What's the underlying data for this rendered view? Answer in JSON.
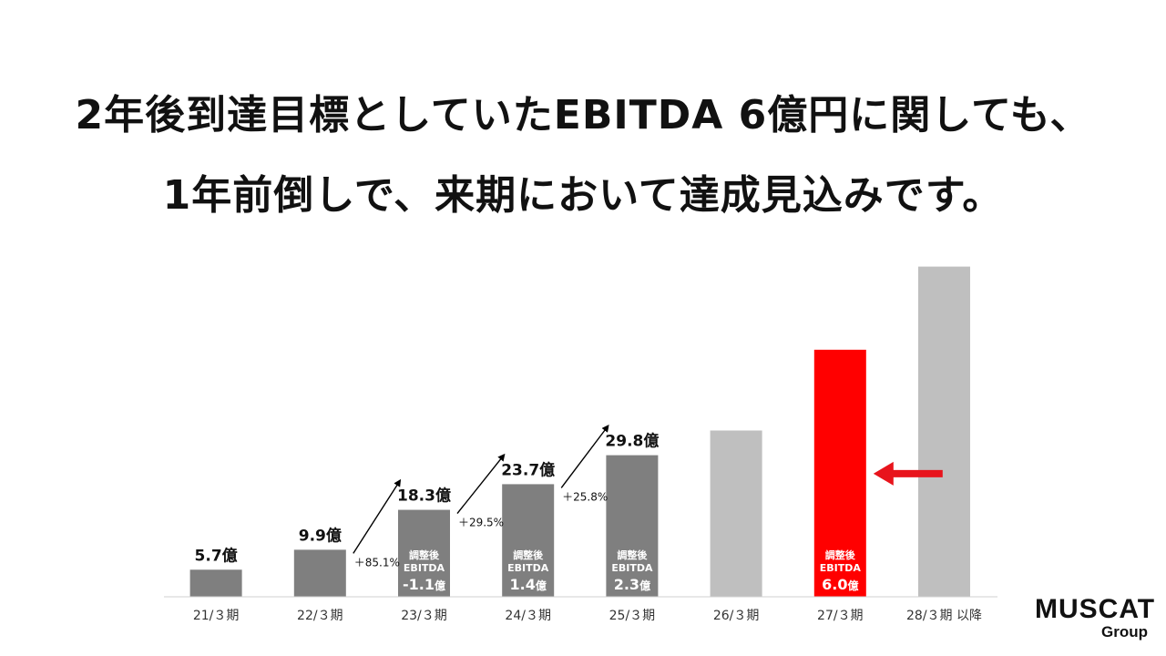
{
  "headline": {
    "line1": "2年後到達目標としていたEBITDA 6億円に関しても、",
    "line2": "1年前倒しで、来期において達成見込みです。"
  },
  "chart_data": {
    "type": "bar",
    "categories": [
      "21/３期",
      "22/３期",
      "23/３期",
      "24/３期",
      "25/３期",
      "26/３期",
      "27/３期",
      "28/３期 以降"
    ],
    "series": [
      {
        "values": [
          5.7,
          9.9,
          18.3,
          23.7,
          29.8,
          35.0,
          52.0,
          69.5
        ]
      }
    ],
    "value_labels": [
      "5.7億",
      "9.9億",
      "18.3億",
      "23.7億",
      "29.8億",
      "",
      "",
      ""
    ],
    "bar_colors": [
      "#7f7f7f",
      "#7f7f7f",
      "#7f7f7f",
      "#7f7f7f",
      "#7f7f7f",
      "#bfbfbf",
      "#ff0000",
      "#bfbfbf"
    ],
    "ebitda": [
      null,
      null,
      {
        "label1": "調整後",
        "label2": "EBITDA",
        "value": "-1.1",
        "unit": "億"
      },
      {
        "label1": "調整後",
        "label2": "EBITDA",
        "value": "1.4",
        "unit": "億"
      },
      {
        "label1": "調整後",
        "label2": "EBITDA",
        "value": "2.3",
        "unit": "億"
      },
      null,
      {
        "label1": "調整後",
        "label2": "EBITDA",
        "value": "6.0",
        "unit": "億"
      },
      null
    ],
    "growth": [
      {
        "from": 1,
        "to": 2,
        "label": "＋85.1%"
      },
      {
        "from": 2,
        "to": 3,
        "label": "＋29.5%"
      },
      {
        "from": 3,
        "to": 4,
        "label": "＋25.8%"
      }
    ],
    "highlight_index": 6,
    "highlight_color": "#e8141c",
    "ylim": [
      0,
      70
    ]
  },
  "logo": {
    "main": "MUSCAT",
    "sub": "Group"
  }
}
